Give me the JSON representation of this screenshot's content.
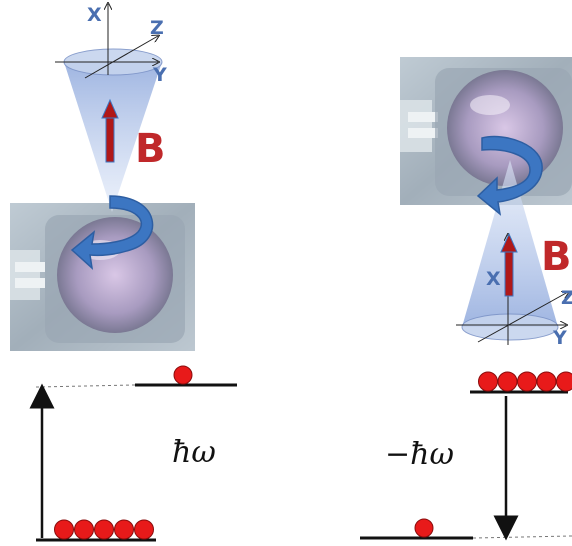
{
  "left_panel": {
    "axes": {
      "x": "X",
      "y": "Y",
      "z": "Z"
    },
    "field_label": "B",
    "energy_label": "ħω",
    "upper_level_atoms": 1,
    "lower_level_atoms": 5
  },
  "right_panel": {
    "axes": {
      "x": "X",
      "y": "Y",
      "z": "Z"
    },
    "field_label": "B",
    "energy_label": "−ħω",
    "upper_level_atoms": 5,
    "lower_level_atoms": 1
  },
  "colors": {
    "atom": "#e81a1a",
    "field_arrow": "#b01818",
    "field_label": "#c0282a",
    "axis_label": "#4a6fb0",
    "rotation_arrow": "#3c76c2",
    "cone": "#9db3e2",
    "level_line": "#111111"
  }
}
